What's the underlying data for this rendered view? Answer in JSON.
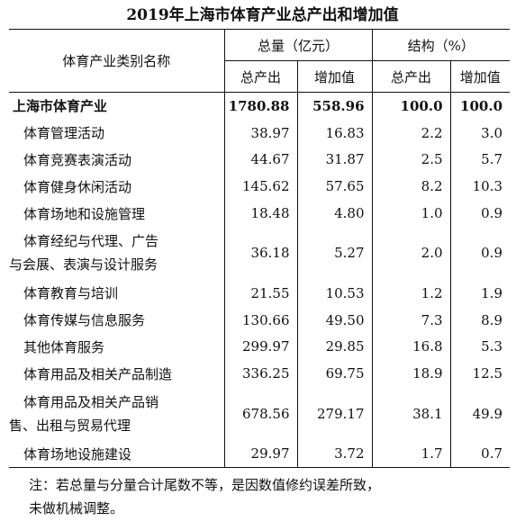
{
  "title": "2019年上海市体育产业总产出和增加值",
  "header": {
    "name_col": "体育产业类别名称",
    "group_total": "总量（亿元）",
    "group_structure": "结构（%）",
    "sub_output": "总产出",
    "sub_added": "增加值",
    "sub_output2": "总产出",
    "sub_added2": "增加值"
  },
  "rows": [
    {
      "name": "上海市体育产业",
      "v1": "1780.88",
      "v2": "558.96",
      "v3": "100.0",
      "v4": "100.0"
    },
    {
      "name": "体育管理活动",
      "v1": "38.97",
      "v2": "16.83",
      "v3": "2.2",
      "v4": "3.0"
    },
    {
      "name": "体育竞赛表演活动",
      "v1": "44.67",
      "v2": "31.87",
      "v3": "2.5",
      "v4": "5.7"
    },
    {
      "name": "体育健身休闲活动",
      "v1": "145.62",
      "v2": "57.65",
      "v3": "8.2",
      "v4": "10.3"
    },
    {
      "name": "体育场地和设施管理",
      "v1": "18.48",
      "v2": "4.80",
      "v3": "1.0",
      "v4": "0.9"
    },
    {
      "name_a": "体育经纪与代理、广告",
      "name_b": "与会展、表演与设计服务",
      "v1": "36.18",
      "v2": "5.27",
      "v3": "2.0",
      "v4": "0.9"
    },
    {
      "name": "体育教育与培训",
      "v1": "21.55",
      "v2": "10.53",
      "v3": "1.2",
      "v4": "1.9"
    },
    {
      "name": "体育传媒与信息服务",
      "v1": "130.66",
      "v2": "49.50",
      "v3": "7.3",
      "v4": "8.9"
    },
    {
      "name": "其他体育服务",
      "v1": "299.97",
      "v2": "29.85",
      "v3": "16.8",
      "v4": "5.3"
    },
    {
      "name": "体育用品及相关产品制造",
      "v1": "336.25",
      "v2": "69.75",
      "v3": "18.9",
      "v4": "12.5"
    },
    {
      "name_a": "体育用品及相关产品销",
      "name_b": "售、出租与贸易代理",
      "v1": "678.56",
      "v2": "279.17",
      "v3": "38.1",
      "v4": "49.9"
    },
    {
      "name": "体育场地设施建设",
      "v1": "29.97",
      "v2": "3.72",
      "v3": "1.7",
      "v4": "0.7"
    }
  ],
  "note_line1": "注：若总量与分量合计尾数不等，是因数值修约误差所致，",
  "note_line2": "未做机械调整。"
}
